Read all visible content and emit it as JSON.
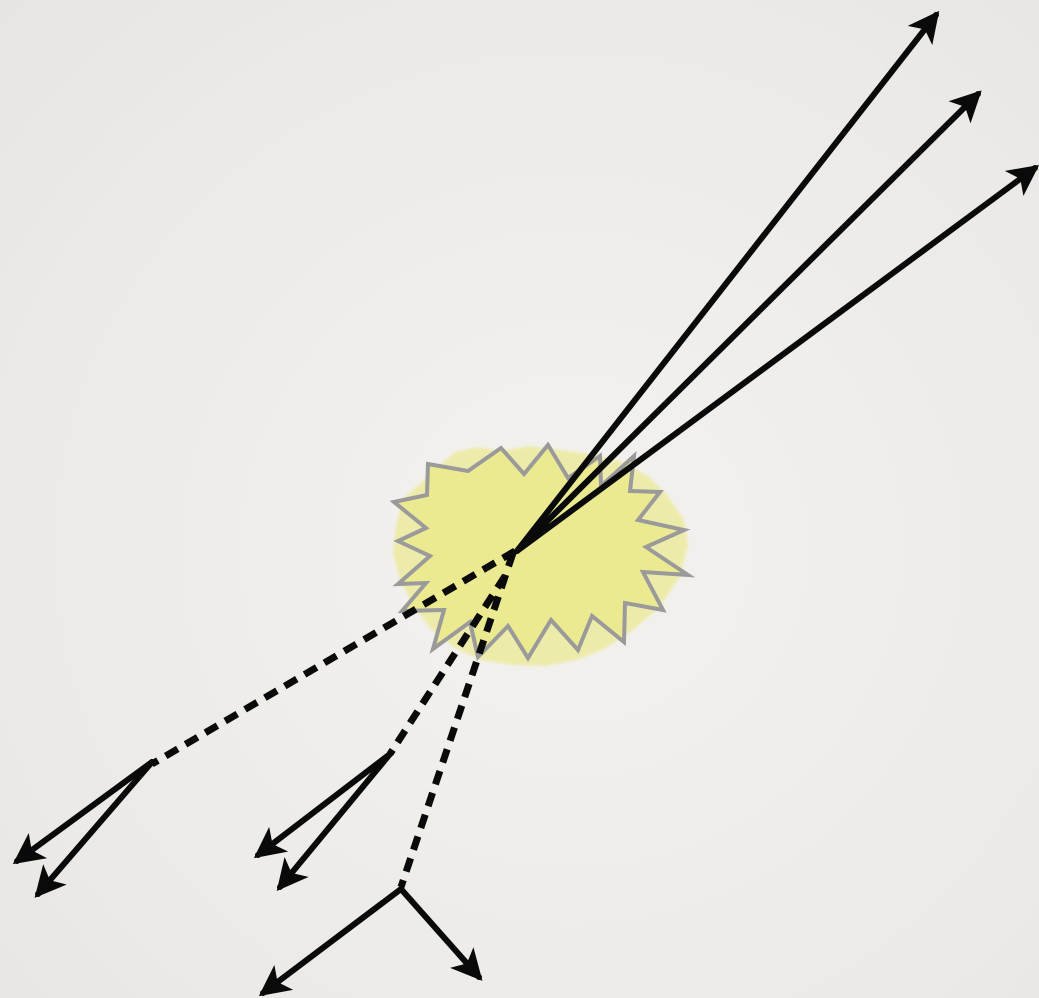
{
  "diagram": {
    "description_hidden": "",
    "colors": {
      "background": "#eeece8",
      "burst_fill": "#ece98f",
      "burst_stroke": "#9a9a9a",
      "line": "#0a0a0a"
    },
    "burst": {
      "name": "collision-burst"
    },
    "outgoing_tracks": [
      {
        "name": "outgoing-track-1",
        "style": "solid",
        "arrow": true
      },
      {
        "name": "outgoing-track-2",
        "style": "solid",
        "arrow": true
      },
      {
        "name": "outgoing-track-3",
        "style": "solid",
        "arrow": true
      }
    ],
    "decays": [
      {
        "name": "decay-left",
        "track_style": "dashed",
        "products": 2
      },
      {
        "name": "decay-middle",
        "track_style": "dashed",
        "products": 2
      },
      {
        "name": "decay-bottom",
        "track_style": "dashed",
        "products": 2
      }
    ]
  }
}
